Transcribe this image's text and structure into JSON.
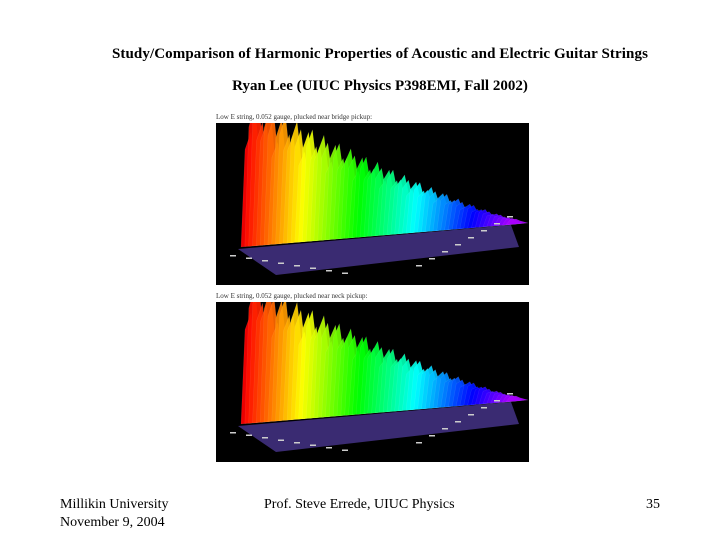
{
  "slide": {
    "title": "Study/Comparison of Harmonic Properties of Acoustic and Electric Guitar Strings",
    "subtitle": "Ryan Lee (UIUC Physics P398EMI, Fall 2002)"
  },
  "figures": [
    {
      "caption": "Low E string, 0.052 gauge, plucked near bridge pickup:"
    },
    {
      "caption": "Low E string, 0.052 gauge, plucked near neck pickup:"
    }
  ],
  "footer": {
    "left_line1": "Millikin University",
    "left_line2": "November 9, 2004",
    "center": "Prof. Steve Errede, UIUC Physics",
    "page_number": "35"
  },
  "colors": {
    "background": "#ffffff",
    "plot_background": "#000000"
  }
}
